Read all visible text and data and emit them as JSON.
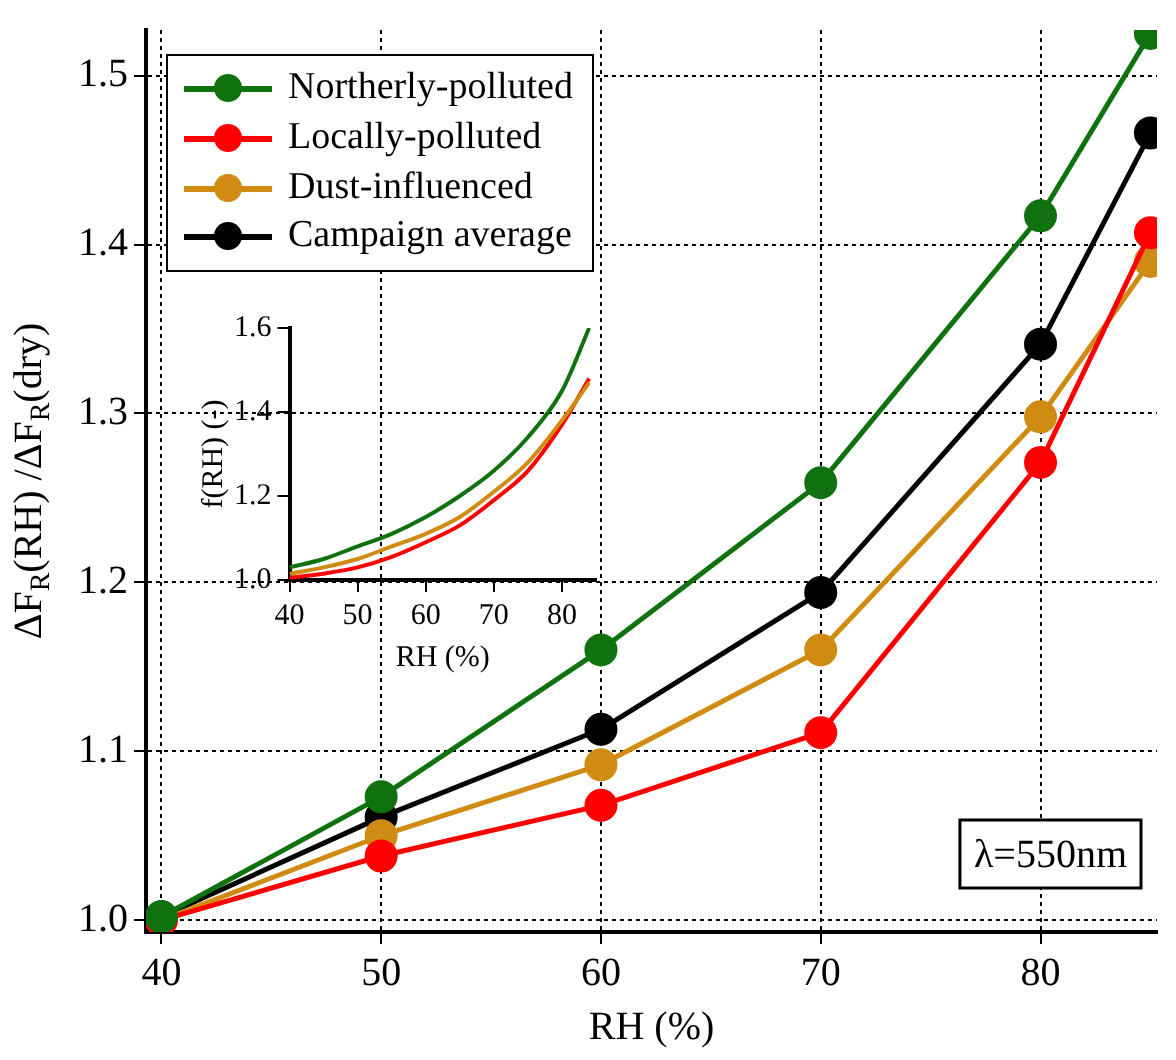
{
  "chart_data": [
    {
      "type": "line",
      "xlabel": "RH (%)",
      "ylabel": "ΔF$_{R}$(RH) /ΔF$_{R}$(dry)",
      "x": [
        40,
        50,
        60,
        70,
        80,
        85
      ],
      "series": [
        {
          "name": "Northerly-polluted",
          "color": "#0f720f",
          "values": [
            1.002,
            1.073,
            1.16,
            1.259,
            1.417,
            1.525
          ]
        },
        {
          "name": "Locally-polluted",
          "color": "#ff0000",
          "values": [
            1.0,
            1.038,
            1.068,
            1.111,
            1.271,
            1.407
          ]
        },
        {
          "name": "Dust-influenced",
          "color": "#d08c12",
          "values": [
            1.0,
            1.05,
            1.092,
            1.16,
            1.298,
            1.39
          ]
        },
        {
          "name": "Campaign average",
          "color": "#000000",
          "values": [
            1.002,
            1.061,
            1.113,
            1.194,
            1.341,
            1.466
          ]
        }
      ],
      "xlim": [
        39.3,
        85.3
      ],
      "ylim": [
        0.993,
        1.527
      ],
      "xticks": [
        40,
        50,
        60,
        70,
        80
      ],
      "yticks": [
        {
          "value": 1,
          "label": "1.0"
        },
        1.1,
        1.2,
        1.3,
        1.4,
        1.5
      ],
      "grid": true,
      "legend": "top left",
      "marker": "circle",
      "line_style": "solid",
      "annotations": [
        "λ=550nm"
      ]
    },
    {
      "type": "line",
      "xlabel": "RH (%)",
      "ylabel": "f(RH) (-)",
      "x": [
        40,
        45,
        50,
        55,
        60,
        65,
        70,
        75,
        80,
        84
      ],
      "series": [
        {
          "color": "#0f720f",
          "values": [
            1.03,
            1.05,
            1.08,
            1.11,
            1.15,
            1.2,
            1.26,
            1.34,
            1.45,
            1.6
          ]
        },
        {
          "color": "#d08c12",
          "values": [
            1.015,
            1.03,
            1.05,
            1.08,
            1.11,
            1.15,
            1.21,
            1.28,
            1.38,
            1.47
          ]
        },
        {
          "color": "#ff0000",
          "values": [
            1.005,
            1.015,
            1.03,
            1.055,
            1.09,
            1.13,
            1.19,
            1.26,
            1.37,
            1.48
          ]
        }
      ],
      "xlim": [
        40,
        85
      ],
      "ylim": [
        1.0,
        1.6
      ],
      "xticks": [
        40,
        50,
        60,
        70,
        80
      ],
      "yticks": [
        {
          "value": 1,
          "label": "1.0"
        },
        1.2,
        1.4,
        1.6
      ],
      "marker": "none",
      "line_style": "solid"
    }
  ]
}
